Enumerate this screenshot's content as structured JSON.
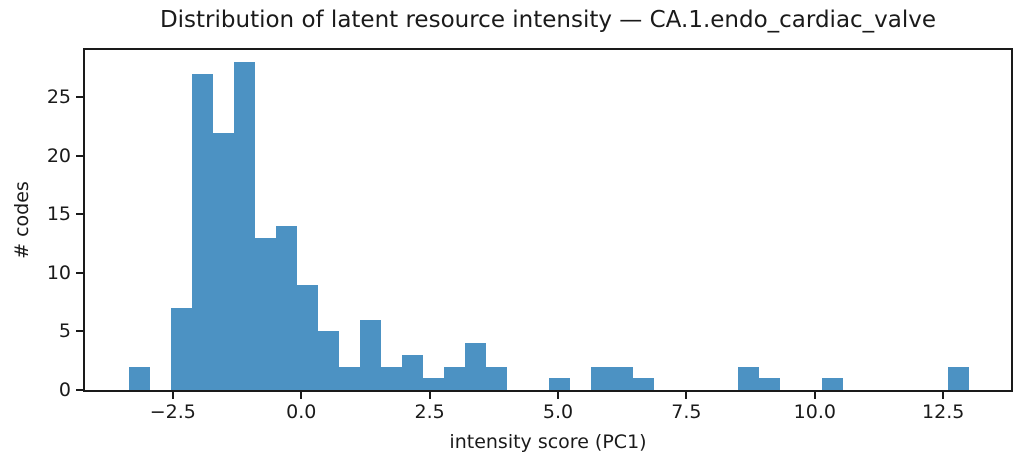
{
  "figure": {
    "background": "#ffffff",
    "text_color": "#1a1a1a",
    "spine_color": "#1a1a1a"
  },
  "title": "Distribution of latent resource intensity — CA.1.endo_cardiac_valve",
  "axes": {
    "xlabel": "intensity score (PC1)",
    "ylabel": "# codes",
    "xlim": [
      -4.21,
      13.82
    ],
    "ylim": [
      0,
      29.05
    ],
    "xticks": [
      -2.5,
      0.0,
      2.5,
      5.0,
      7.5,
      10.0,
      12.5
    ],
    "xtick_labels": [
      "−2.5",
      "0.0",
      "2.5",
      "5.0",
      "7.5",
      "10.0",
      "12.5"
    ],
    "yticks": [
      0,
      5,
      10,
      15,
      20,
      25
    ],
    "ytick_labels": [
      "0",
      "5",
      "10",
      "15",
      "20",
      "25"
    ],
    "grid": false,
    "legend": false
  },
  "chart_data": {
    "type": "bar",
    "subtype": "histogram",
    "title": "Distribution of latent resource intensity — CA.1.endo_cardiac_valve",
    "xlabel": "intensity score (PC1)",
    "ylabel": "# codes",
    "bar_color": "#4C92C3",
    "bin_start": -3.36,
    "bin_width": 0.409,
    "counts": [
      2,
      0,
      7,
      27,
      22,
      28,
      13,
      14,
      9,
      5,
      2,
      6,
      2,
      3,
      1,
      2,
      4,
      2,
      0,
      0,
      1,
      0,
      2,
      2,
      1,
      0,
      0,
      0,
      0,
      2,
      1,
      0,
      0,
      1,
      0,
      0,
      0,
      0,
      0,
      2
    ],
    "xlim": [
      -4.21,
      13.82
    ],
    "ylim": [
      0,
      29.05
    ]
  }
}
